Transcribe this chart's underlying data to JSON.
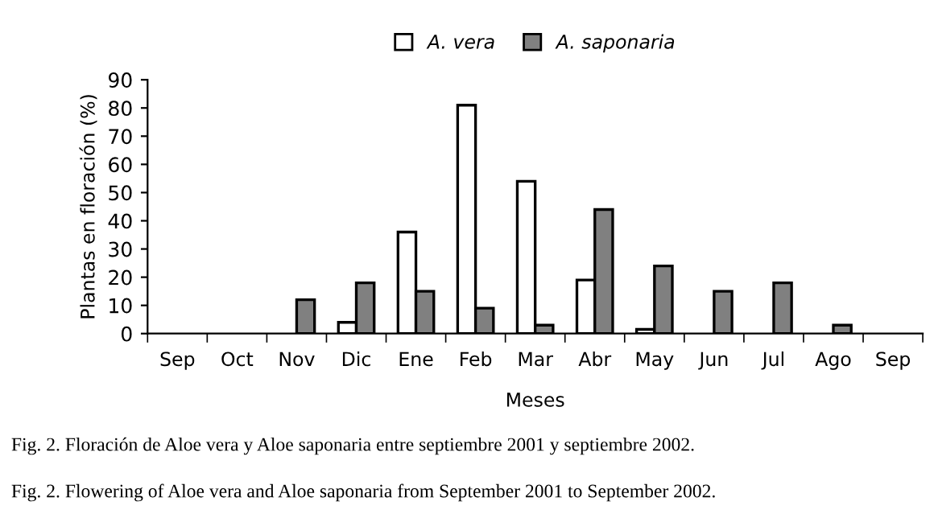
{
  "chart_data": {
    "type": "bar",
    "xlabel": "Meses",
    "ylabel": "Plantas en floración (%)",
    "categories": [
      "Sep",
      "Oct",
      "Nov",
      "Dic",
      "Ene",
      "Feb",
      "Mar",
      "Abr",
      "May",
      "Jun",
      "Jul",
      "Ago",
      "Sep"
    ],
    "series": [
      {
        "name": "A. vera",
        "color": "#ffffff",
        "values": [
          0,
          0,
          0,
          4,
          36,
          81,
          54,
          19,
          1.5,
          0,
          0,
          0,
          0
        ]
      },
      {
        "name": "A. saponaria",
        "color": "#808080",
        "values": [
          0,
          0,
          12,
          18,
          15,
          9,
          3,
          44,
          24,
          15,
          18,
          3,
          0
        ]
      }
    ],
    "ylim": [
      0,
      90
    ],
    "yticks": [
      0,
      10,
      20,
      30,
      40,
      50,
      60,
      70,
      80,
      90
    ],
    "grid": false,
    "legend": "top",
    "annotations": [
      "Fig. 2. Floración de Aloe vera y Aloe saponaria entre septiembre 2001 y septiembre 2002.",
      "Fig. 2. Flowering of Aloe vera and Aloe saponaria from September 2001 to September 2002."
    ]
  }
}
